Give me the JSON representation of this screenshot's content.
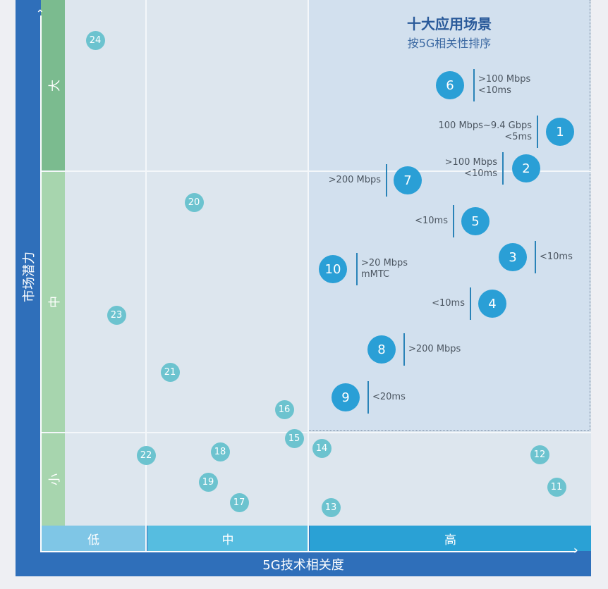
{
  "chart_data": {
    "type": "scatter",
    "title": "十大应用场景",
    "subtitle": "按5G相关性排序",
    "xlabel": "5G技术相关度",
    "ylabel": "市场潜力",
    "x_categories": [
      "低",
      "中",
      "高"
    ],
    "y_categories": [
      "小",
      "中",
      "大"
    ],
    "colors": {
      "frame": "#2f6fba",
      "top_ten": "#2a9fd6",
      "others": "#6cc3cf",
      "y_high": "#7bbb8f",
      "y_mid_low": "#a7d5ae"
    },
    "top_ten": [
      {
        "id": "1",
        "annotation": [
          "100 Mbps~9.4 Gbps",
          "<5ms"
        ]
      },
      {
        "id": "2",
        "annotation": [
          ">100 Mbps",
          "<10ms"
        ]
      },
      {
        "id": "3",
        "annotation": [
          "<10ms"
        ]
      },
      {
        "id": "4",
        "annotation": [
          "<10ms"
        ]
      },
      {
        "id": "5",
        "annotation": [
          "<10ms"
        ]
      },
      {
        "id": "6",
        "annotation": [
          ">100 Mbps",
          "<10ms"
        ]
      },
      {
        "id": "7",
        "annotation": [
          ">200 Mbps"
        ]
      },
      {
        "id": "8",
        "annotation": [
          ">200 Mbps"
        ]
      },
      {
        "id": "9",
        "annotation": [
          "<20ms"
        ]
      },
      {
        "id": "10",
        "annotation": [
          ">20 Mbps",
          "mMTC"
        ]
      }
    ],
    "others": [
      "11",
      "12",
      "13",
      "14",
      "15",
      "16",
      "17",
      "18",
      "19",
      "20",
      "21",
      "22",
      "23",
      "24"
    ]
  }
}
